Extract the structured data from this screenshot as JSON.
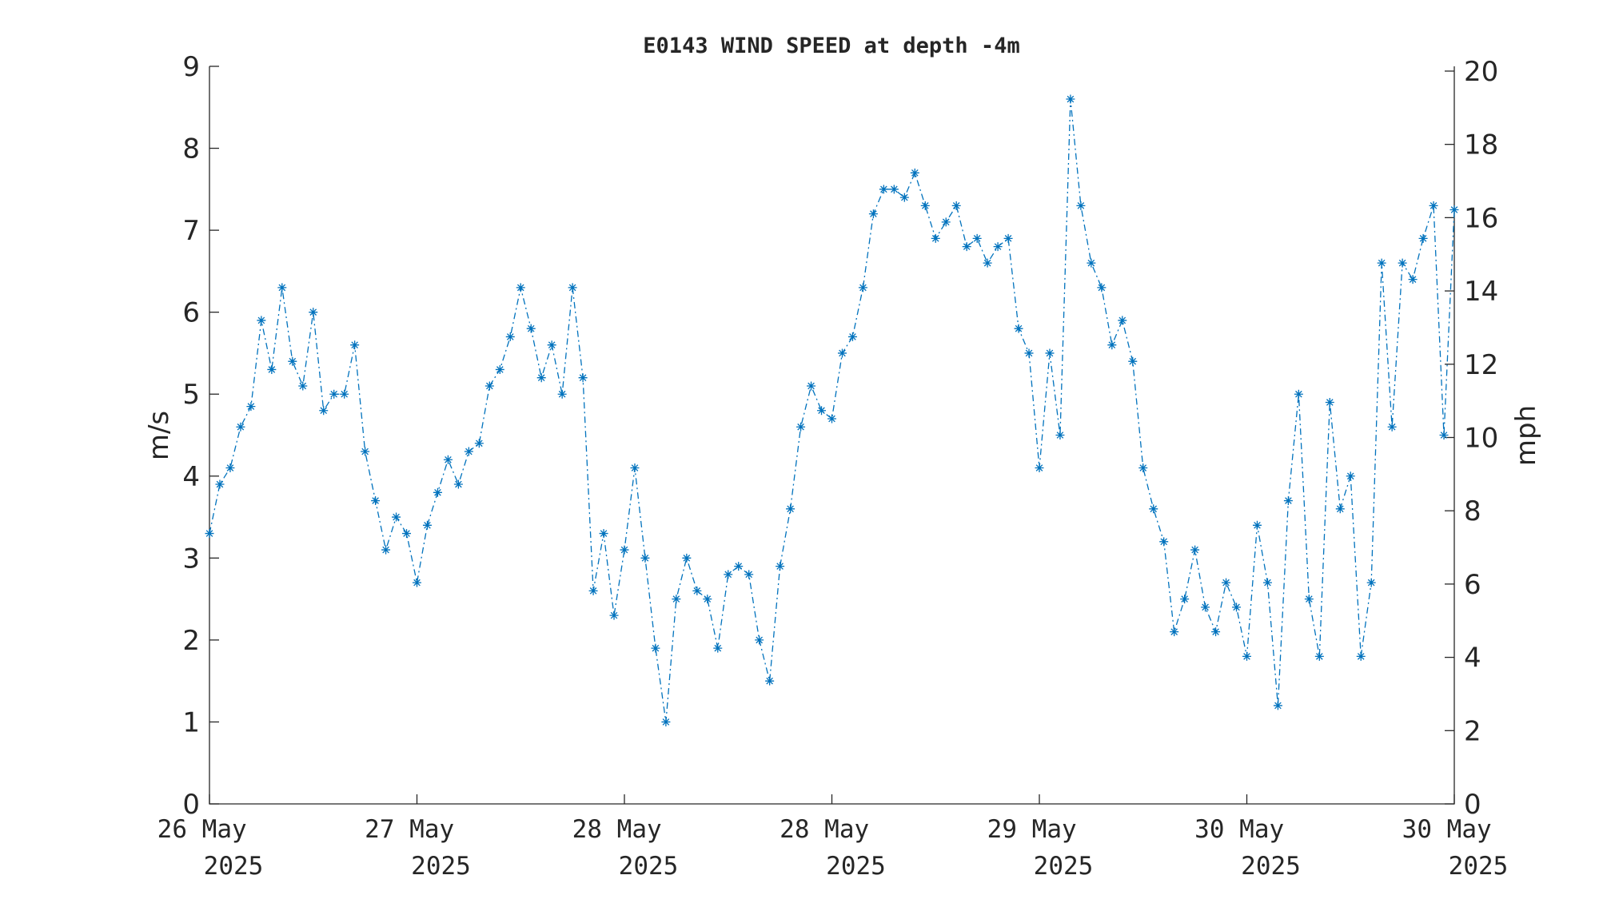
{
  "chart_data": {
    "type": "line",
    "title": "E0143 WIND SPEED at depth -4m",
    "ylabel": "m/s",
    "y2label": "mph",
    "x": [
      0,
      0.05,
      0.1,
      0.15,
      0.2,
      0.25,
      0.3,
      0.35,
      0.4,
      0.45,
      0.5,
      0.55,
      0.6,
      0.65,
      0.7,
      0.75,
      0.8,
      0.85,
      0.9,
      0.95,
      1,
      1.05,
      1.1,
      1.15,
      1.2,
      1.25,
      1.3,
      1.35,
      1.4,
      1.45,
      1.5,
      1.55,
      1.6,
      1.65,
      1.7,
      1.75,
      1.8,
      1.85,
      1.9,
      1.95,
      2,
      2.05,
      2.1,
      2.15,
      2.2,
      2.25,
      2.3,
      2.35,
      2.4,
      2.45,
      2.5,
      2.55,
      2.6,
      2.65,
      2.7,
      2.75,
      2.8,
      2.85,
      2.9,
      2.95,
      3,
      3.05,
      3.1,
      3.15,
      3.2,
      3.25,
      3.3,
      3.35,
      3.4,
      3.45,
      3.5,
      3.55,
      3.6,
      3.65,
      3.7,
      3.75,
      3.8,
      3.85,
      3.9,
      3.95,
      4,
      4.05,
      4.1,
      4.15,
      4.2,
      4.25,
      4.3,
      4.35,
      4.4,
      4.45,
      4.5,
      4.55,
      4.6,
      4.65,
      4.7,
      4.75,
      4.8,
      4.85,
      4.9,
      4.95,
      5,
      5.05,
      5.1,
      5.15,
      5.2,
      5.25,
      5.3,
      5.35,
      5.4,
      5.45,
      5.5,
      5.55,
      5.6,
      5.65,
      5.7,
      5.75,
      5.8,
      5.85,
      5.9,
      5.95,
      6
    ],
    "series": [
      {
        "color": "#0072bd",
        "values": [
          3.3,
          3.9,
          4.1,
          4.6,
          4.85,
          5.9,
          5.3,
          6.3,
          5.4,
          5.1,
          6.0,
          4.8,
          5.0,
          5.0,
          5.6,
          4.3,
          3.7,
          3.1,
          3.5,
          3.3,
          2.7,
          3.4,
          3.8,
          4.2,
          3.9,
          4.3,
          4.4,
          5.1,
          5.3,
          5.7,
          6.3,
          5.8,
          5.2,
          5.6,
          5.0,
          6.3,
          5.2,
          2.6,
          3.3,
          2.3,
          3.1,
          4.1,
          3.0,
          1.9,
          1.0,
          2.5,
          3.0,
          2.6,
          2.5,
          1.9,
          2.8,
          2.9,
          2.8,
          2.0,
          1.5,
          2.9,
          3.6,
          4.6,
          5.1,
          4.8,
          4.7,
          5.5,
          5.7,
          6.3,
          7.2,
          7.5,
          7.5,
          7.4,
          7.7,
          7.3,
          6.9,
          7.1,
          7.3,
          6.8,
          6.9,
          6.6,
          6.8,
          6.9,
          5.8,
          5.5,
          4.1,
          5.5,
          4.5,
          8.6,
          7.3,
          6.6,
          6.3,
          5.6,
          5.9,
          5.4,
          4.1,
          3.6,
          3.2,
          2.1,
          2.5,
          3.1,
          2.4,
          2.1,
          2.7,
          2.4,
          1.8,
          3.4,
          2.7,
          1.2,
          3.7,
          5.0,
          2.5,
          1.8,
          4.9,
          3.6,
          4.0,
          1.8,
          2.7,
          6.6,
          4.6,
          6.6,
          6.4,
          6.9,
          7.3,
          4.5,
          7.25
        ]
      }
    ],
    "xlim": [
      0,
      6
    ],
    "xticks": [
      {
        "value": 0,
        "label": "26 May 2025"
      },
      {
        "value": 1,
        "label": "27 May 2025"
      },
      {
        "value": 2,
        "label": "28 May 2025"
      },
      {
        "value": 3,
        "label": "28 May 2025"
      },
      {
        "value": 4,
        "label": "29 May 2025"
      },
      {
        "value": 5,
        "label": "30 May 2025"
      },
      {
        "value": 6,
        "label": "30 May 2025"
      }
    ],
    "ylim": [
      0,
      9
    ],
    "yticks": [
      0,
      1,
      2,
      3,
      4,
      5,
      6,
      7,
      8,
      9
    ],
    "y2lim": [
      0,
      20.13
    ],
    "y2ticks": [
      0,
      2,
      4,
      6,
      8,
      10,
      12,
      14,
      16,
      18,
      20
    ]
  }
}
